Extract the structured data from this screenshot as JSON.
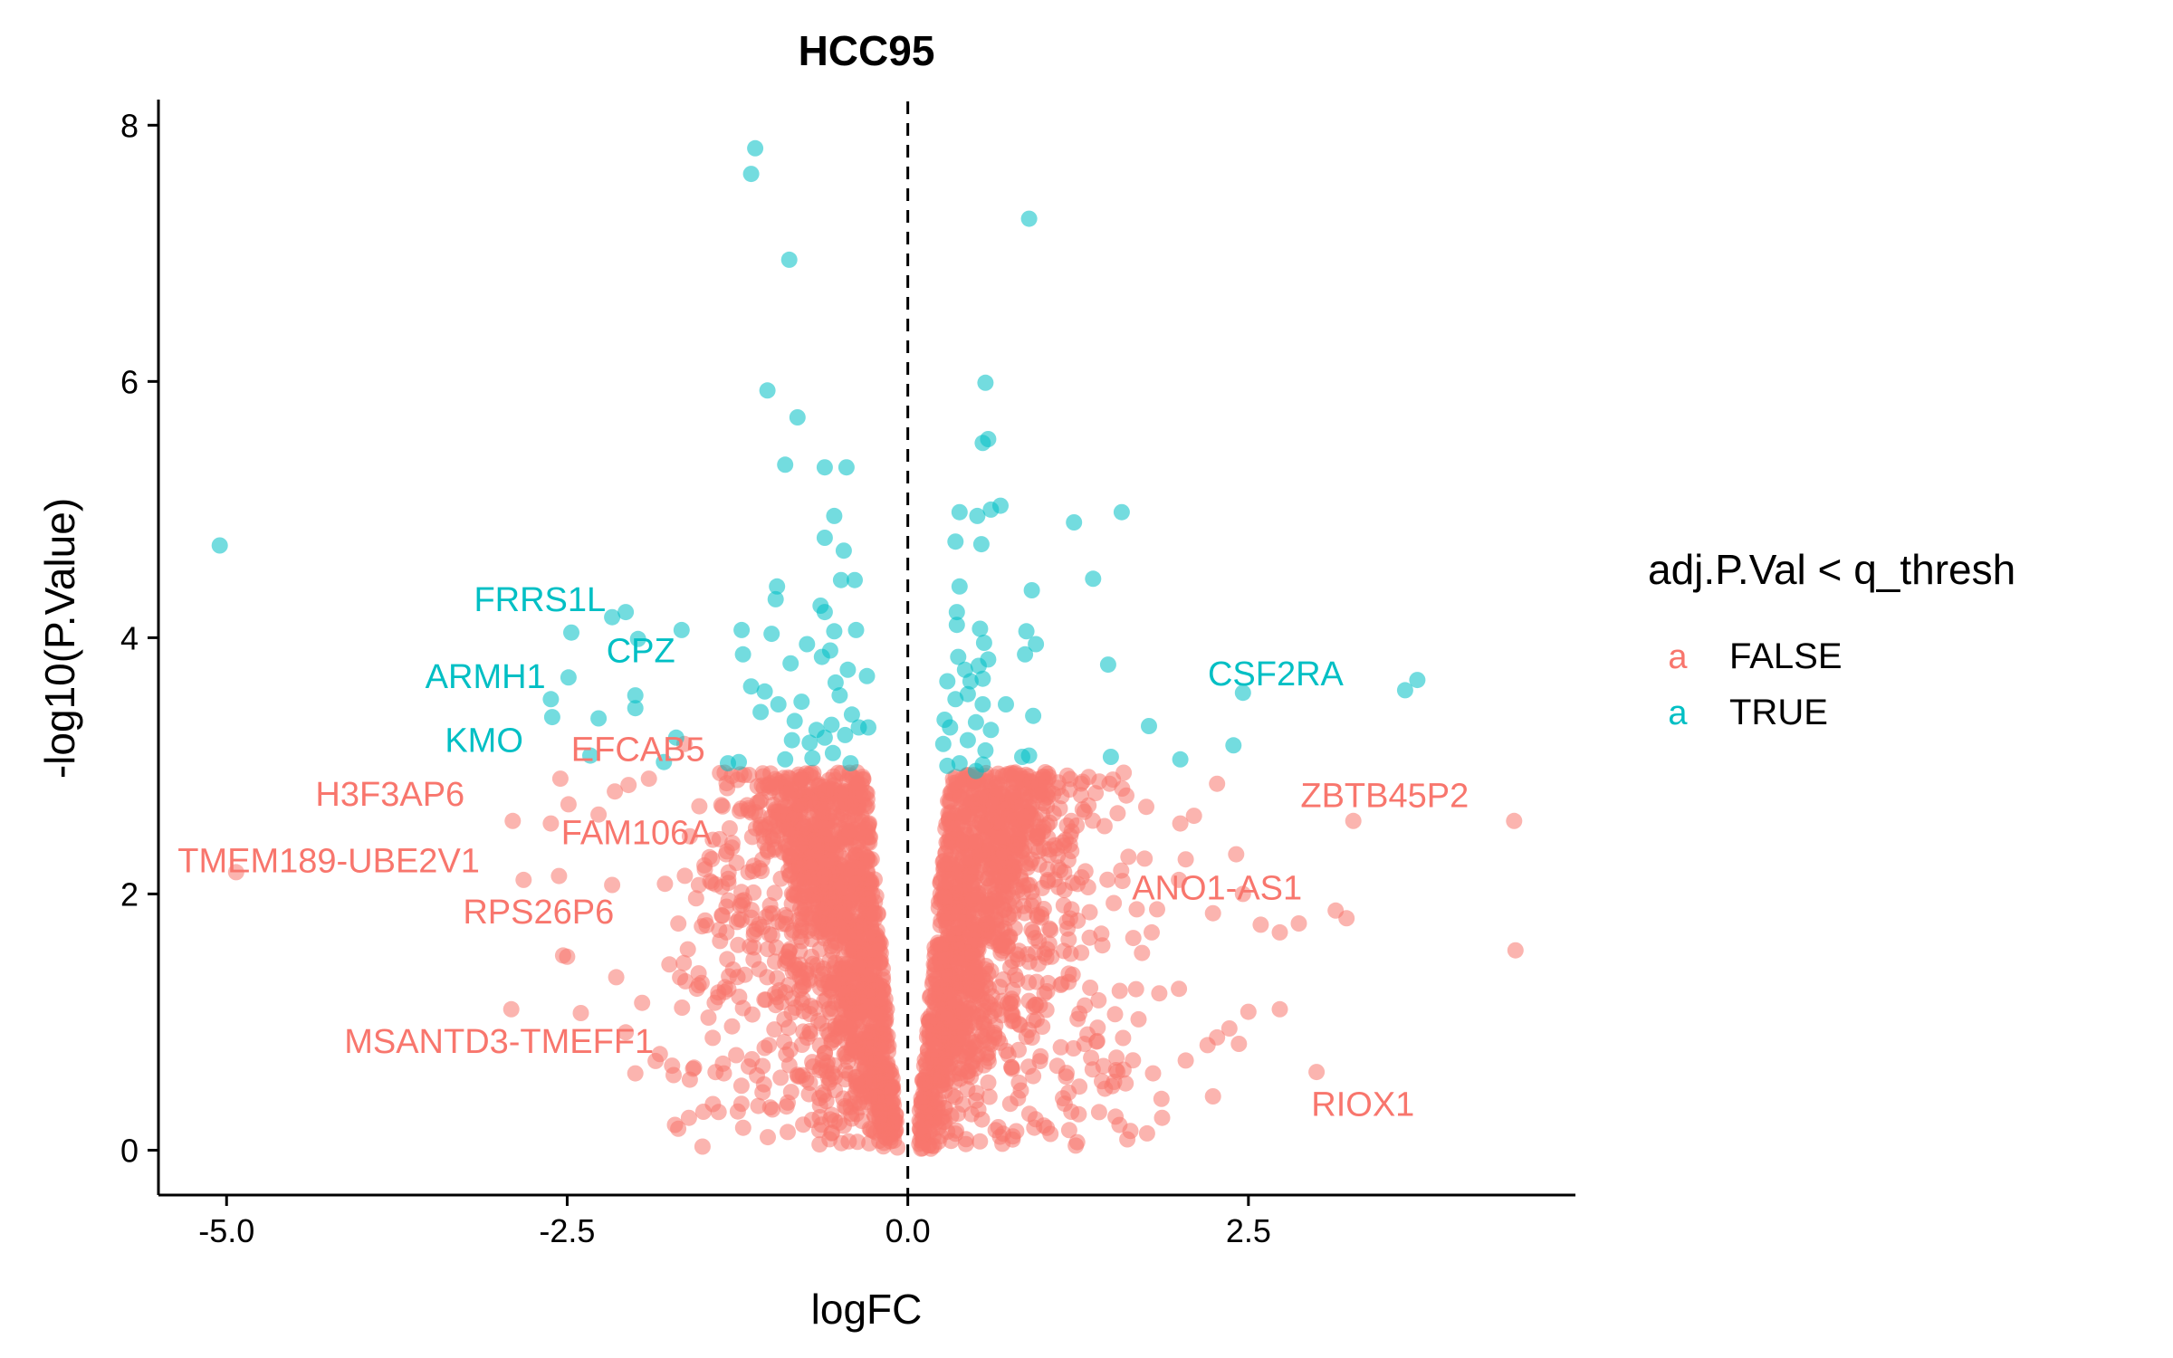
{
  "chart_data": {
    "type": "scatter",
    "title": "HCC95",
    "xlabel": "logFC",
    "ylabel": "-log10(P.Value)",
    "xlim": [
      -5.5,
      4.9
    ],
    "ylim": [
      -0.35,
      8.2
    ],
    "x_ticks": [
      -5.0,
      -2.5,
      0.0,
      2.5
    ],
    "x_tick_labels": [
      "-5.0",
      "-2.5",
      "0.0",
      "2.5"
    ],
    "y_ticks": [
      0,
      2,
      4,
      6,
      8
    ],
    "y_tick_labels": [
      "0",
      "2",
      "4",
      "6",
      "8"
    ],
    "reference_line": {
      "x": 0,
      "style": "dashed"
    },
    "grid": false,
    "legend": {
      "title": "adj.P.Val < q_thresh",
      "position": "right",
      "key_glyph": "a",
      "entries": [
        {
          "label": "FALSE",
          "color": "#F8766D"
        },
        {
          "label": "TRUE",
          "color": "#00BFC4"
        }
      ]
    },
    "series": [
      {
        "name": "TRUE",
        "color": "#00BFC4",
        "points": [
          [
            -5.05,
            4.72
          ],
          [
            -1.12,
            7.82
          ],
          [
            -1.15,
            7.62
          ],
          [
            -0.87,
            6.95
          ],
          [
            -1.03,
            5.93
          ],
          [
            -0.81,
            5.72
          ],
          [
            -0.9,
            5.35
          ],
          [
            -0.61,
            5.33
          ],
          [
            -0.45,
            5.33
          ],
          [
            -0.54,
            4.95
          ],
          [
            -0.61,
            4.78
          ],
          [
            -0.47,
            4.68
          ],
          [
            -0.49,
            4.45
          ],
          [
            -0.39,
            4.45
          ],
          [
            -0.96,
            4.4
          ],
          [
            -0.97,
            4.3
          ],
          [
            -0.64,
            4.25
          ],
          [
            -0.61,
            4.2
          ],
          [
            -1.22,
            4.06
          ],
          [
            -1.0,
            4.03
          ],
          [
            -0.54,
            4.05
          ],
          [
            -0.38,
            4.06
          ],
          [
            -0.74,
            3.95
          ],
          [
            -0.57,
            3.9
          ],
          [
            -1.21,
            3.87
          ],
          [
            -0.86,
            3.8
          ],
          [
            -0.63,
            3.85
          ],
          [
            -0.44,
            3.75
          ],
          [
            -0.53,
            3.65
          ],
          [
            -0.3,
            3.7
          ],
          [
            -1.15,
            3.62
          ],
          [
            -1.05,
            3.58
          ],
          [
            -0.95,
            3.48
          ],
          [
            -0.78,
            3.5
          ],
          [
            -0.5,
            3.55
          ],
          [
            -0.41,
            3.4
          ],
          [
            -1.08,
            3.42
          ],
          [
            -0.83,
            3.35
          ],
          [
            -0.67,
            3.28
          ],
          [
            -0.56,
            3.32
          ],
          [
            -0.36,
            3.3
          ],
          [
            -0.29,
            3.3
          ],
          [
            -0.85,
            3.2
          ],
          [
            -0.72,
            3.18
          ],
          [
            -0.61,
            3.22
          ],
          [
            -0.46,
            3.24
          ],
          [
            -1.32,
            3.02
          ],
          [
            -1.24,
            3.03
          ],
          [
            -0.9,
            3.05
          ],
          [
            -0.7,
            3.06
          ],
          [
            -0.55,
            3.1
          ],
          [
            -0.42,
            3.02
          ],
          [
            -2.07,
            4.2
          ],
          [
            -2.17,
            4.16
          ],
          [
            -1.66,
            4.06
          ],
          [
            -2.47,
            4.04
          ],
          [
            -1.98,
            3.99
          ],
          [
            -2.49,
            3.69
          ],
          [
            -2.62,
            3.52
          ],
          [
            -2.0,
            3.55
          ],
          [
            -2.27,
            3.37
          ],
          [
            -2.0,
            3.45
          ],
          [
            -1.79,
            3.03
          ],
          [
            -1.7,
            3.22
          ],
          [
            -2.61,
            3.38
          ],
          [
            -2.33,
            3.08
          ],
          [
            0.89,
            7.27
          ],
          [
            0.57,
            5.99
          ],
          [
            0.55,
            5.52
          ],
          [
            0.59,
            5.55
          ],
          [
            0.68,
            5.03
          ],
          [
            0.61,
            5.0
          ],
          [
            0.38,
            4.98
          ],
          [
            0.51,
            4.95
          ],
          [
            1.22,
            4.9
          ],
          [
            1.57,
            4.98
          ],
          [
            0.35,
            4.75
          ],
          [
            0.54,
            4.73
          ],
          [
            1.36,
            4.46
          ],
          [
            0.38,
            4.4
          ],
          [
            0.91,
            4.37
          ],
          [
            0.36,
            4.2
          ],
          [
            0.36,
            4.1
          ],
          [
            0.53,
            4.07
          ],
          [
            0.87,
            4.05
          ],
          [
            0.56,
            3.96
          ],
          [
            0.94,
            3.95
          ],
          [
            0.37,
            3.85
          ],
          [
            0.59,
            3.83
          ],
          [
            0.86,
            3.87
          ],
          [
            1.47,
            3.79
          ],
          [
            0.42,
            3.75
          ],
          [
            0.52,
            3.78
          ],
          [
            0.29,
            3.66
          ],
          [
            0.46,
            3.66
          ],
          [
            0.55,
            3.68
          ],
          [
            0.35,
            3.52
          ],
          [
            0.44,
            3.56
          ],
          [
            0.55,
            3.48
          ],
          [
            0.72,
            3.48
          ],
          [
            0.92,
            3.39
          ],
          [
            1.77,
            3.31
          ],
          [
            0.27,
            3.36
          ],
          [
            0.31,
            3.3
          ],
          [
            0.5,
            3.34
          ],
          [
            0.61,
            3.28
          ],
          [
            0.26,
            3.17
          ],
          [
            0.44,
            3.2
          ],
          [
            0.57,
            3.12
          ],
          [
            0.84,
            3.07
          ],
          [
            0.89,
            3.08
          ],
          [
            1.49,
            3.07
          ],
          [
            2.0,
            3.05
          ],
          [
            2.39,
            3.16
          ],
          [
            0.29,
            3.0
          ],
          [
            0.38,
            3.02
          ],
          [
            0.5,
            2.96
          ],
          [
            0.55,
            3.01
          ],
          [
            2.46,
            3.57
          ],
          [
            3.65,
            3.59
          ],
          [
            3.74,
            3.67
          ]
        ]
      },
      {
        "name": "FALSE",
        "color": "#F8766D",
        "points": [
          [
            -4.93,
            2.17
          ],
          [
            -2.9,
            2.57
          ],
          [
            -2.62,
            2.55
          ],
          [
            -2.49,
            2.7
          ],
          [
            -2.27,
            2.62
          ],
          [
            -2.56,
            2.14
          ],
          [
            -2.82,
            2.11
          ],
          [
            -2.17,
            2.07
          ],
          [
            -2.5,
            1.51
          ],
          [
            -2.53,
            1.52
          ],
          [
            -2.91,
            1.1
          ],
          [
            -2.4,
            1.07
          ],
          [
            -2.07,
            0.92
          ],
          [
            -2.0,
            0.6
          ],
          [
            -1.73,
            0.66
          ],
          [
            -1.6,
            0.55
          ],
          [
            -2.05,
            2.85
          ],
          [
            -1.9,
            2.9
          ],
          [
            -1.6,
            2.45
          ],
          [
            -1.45,
            2.1
          ],
          [
            -1.75,
            1.45
          ],
          [
            -1.5,
            0.3
          ],
          [
            -1.35,
            0.6
          ],
          [
            -1.82,
            0.75
          ],
          [
            -2.14,
            1.35
          ],
          [
            -1.95,
            1.15
          ],
          [
            -1.25,
            2.89
          ],
          [
            -1.64,
            3.17
          ],
          [
            -2.55,
            2.9
          ],
          [
            -2.15,
            2.8
          ],
          [
            4.45,
            2.57
          ],
          [
            4.46,
            1.56
          ],
          [
            3.27,
            2.57
          ],
          [
            3.14,
            1.87
          ],
          [
            3.22,
            1.81
          ],
          [
            3.0,
            0.61
          ],
          [
            2.87,
            1.77
          ],
          [
            2.59,
            1.76
          ],
          [
            2.73,
            1.7
          ],
          [
            2.46,
            2.0
          ],
          [
            2.41,
            2.31
          ],
          [
            2.24,
            1.85
          ],
          [
            2.27,
            2.86
          ],
          [
            2.1,
            2.61
          ],
          [
            2.0,
            2.55
          ],
          [
            2.04,
            2.27
          ],
          [
            1.99,
            2.11
          ],
          [
            2.5,
            1.08
          ],
          [
            2.73,
            1.1
          ],
          [
            2.36,
            0.95
          ],
          [
            2.43,
            0.83
          ],
          [
            2.27,
            0.88
          ],
          [
            2.2,
            0.82
          ],
          [
            2.24,
            0.42
          ],
          [
            2.04,
            0.7
          ],
          [
            1.99,
            1.26
          ],
          [
            1.83,
            1.88
          ],
          [
            1.68,
            1.88
          ],
          [
            1.79,
            1.7
          ],
          [
            1.54,
            2.63
          ],
          [
            1.75,
            2.68
          ],
          [
            1.48,
            2.86
          ],
          [
            1.2,
            2.57
          ],
          [
            1.15,
            2.03
          ],
          [
            1.21,
            1.37
          ],
          [
            1.4,
            1.17
          ],
          [
            1.1,
            2.3
          ],
          [
            1.04,
            1.73
          ],
          [
            1.18,
            0.45
          ],
          [
            1.2,
            0.3
          ],
          [
            1.5,
            0.5
          ],
          [
            1.8,
            0.6
          ]
        ]
      }
    ],
    "dense_cloud": {
      "series": "FALSE",
      "note": "thousands of overlapping points forming a V-shaped cloud around x=0 between y=0 and y~3",
      "left_arm": {
        "x_range": [
          -2.1,
          0.0
        ],
        "y_range": [
          0,
          2.95
        ]
      },
      "right_arm": {
        "x_range": [
          0.0,
          2.2
        ],
        "y_range": [
          0,
          2.95
        ]
      }
    },
    "annotations": [
      {
        "text": "FRRS1L",
        "x": -2.7,
        "y": 4.3,
        "series": "TRUE"
      },
      {
        "text": "CPZ",
        "x": -1.96,
        "y": 3.9,
        "series": "TRUE"
      },
      {
        "text": "ARMH1",
        "x": -3.1,
        "y": 3.7,
        "series": "TRUE"
      },
      {
        "text": "KMO",
        "x": -3.11,
        "y": 3.2,
        "series": "TRUE"
      },
      {
        "text": "CSF2RA",
        "x": 2.7,
        "y": 3.72,
        "series": "TRUE"
      },
      {
        "text": "EFCAB5",
        "x": -1.98,
        "y": 3.13,
        "series": "FALSE"
      },
      {
        "text": "H3F3AP6",
        "x": -3.8,
        "y": 2.78,
        "series": "FALSE"
      },
      {
        "text": "FAM106A",
        "x": -1.99,
        "y": 2.48,
        "series": "FALSE"
      },
      {
        "text": "TMEM189-UBE2V1",
        "x": -4.25,
        "y": 2.26,
        "series": "FALSE"
      },
      {
        "text": "ZBTB45P2",
        "x": 3.5,
        "y": 2.77,
        "series": "FALSE"
      },
      {
        "text": "ANO1-AS1",
        "x": 2.27,
        "y": 2.05,
        "series": "FALSE"
      },
      {
        "text": "RPS26P6",
        "x": -2.71,
        "y": 1.86,
        "series": "FALSE"
      },
      {
        "text": "MSANTD3-TMEFF1",
        "x": -3.0,
        "y": 0.85,
        "series": "FALSE"
      },
      {
        "text": "RIOX1",
        "x": 3.34,
        "y": 0.36,
        "series": "FALSE"
      }
    ]
  }
}
